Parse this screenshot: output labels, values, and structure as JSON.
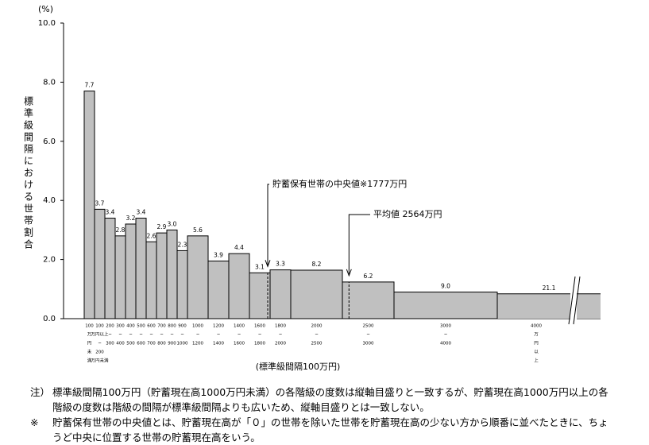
{
  "chart_data": {
    "type": "histogram",
    "y_unit": "(%)",
    "y_label": "標準級間隔における世帯割合",
    "x_label": "(標準級間隔100万円)",
    "bins": [
      0,
      100,
      200,
      300,
      400,
      500,
      600,
      700,
      800,
      900,
      1000,
      1200,
      1400,
      1600,
      1800,
      2000,
      2500,
      3000,
      4000,
      5000
    ],
    "values": [
      7.7,
      3.7,
      3.4,
      2.8,
      3.2,
      3.4,
      2.6,
      2.9,
      3.0,
      2.3,
      2.8,
      1.95,
      2.2,
      1.55,
      1.65,
      1.64,
      1.24,
      0.9,
      0.84
    ],
    "shares": [
      "7.7",
      "3.7",
      "3.4",
      "2.8",
      "3.2",
      "3.4",
      "2.6",
      "2.9",
      "3.0",
      "2.3",
      "5.6",
      "3.9",
      "4.4",
      "3.1",
      "3.3",
      "8.2",
      "6.2",
      "9.0",
      "21.1"
    ],
    "x_tick_labels": [
      [
        "100",
        "万",
        "円",
        "未",
        "満"
      ],
      [
        "100",
        "万円以上",
        "~",
        "200",
        "万円未満"
      ],
      [
        "200",
        "~",
        "300"
      ],
      [
        "300",
        "~",
        "400"
      ],
      [
        "400",
        "~",
        "500"
      ],
      [
        "500",
        "~",
        "600"
      ],
      [
        "600",
        "~",
        "700"
      ],
      [
        "700",
        "~",
        "800"
      ],
      [
        "800",
        "~",
        "900"
      ],
      [
        "900",
        "~",
        "1000"
      ],
      [
        "1000",
        "~",
        "1200"
      ],
      [
        "1200",
        "~",
        "1400"
      ],
      [
        "1400",
        "~",
        "1600"
      ],
      [
        "1600",
        "~",
        "1800"
      ],
      [
        "1800",
        "~",
        "2000"
      ],
      [
        "2000",
        "~",
        "2500"
      ],
      [
        "2500",
        "~",
        "3000"
      ],
      [
        "3000",
        "~",
        "4000"
      ],
      [
        "4000",
        "万",
        "円",
        "以",
        "上"
      ]
    ],
    "color": "#c0c0c0",
    "xlim": [
      -200,
      5000
    ],
    "ylim": [
      0,
      10
    ],
    "yticks": [
      {
        "value": 0,
        "label": "0.0"
      },
      {
        "value": 2,
        "label": "2.0"
      },
      {
        "value": 4,
        "label": "4.0"
      },
      {
        "value": 6,
        "label": "6.0"
      },
      {
        "value": 8,
        "label": "8.0"
      },
      {
        "value": 10,
        "label": "10.0"
      }
    ],
    "markers": [
      {
        "label": "貯蓄保有世帯の中央値※1777万円",
        "x": 1777
      },
      {
        "label": "平均値 2564万円",
        "x": 2564
      }
    ]
  },
  "notes": [
    {
      "mark": "注）",
      "text": "標準級間隔100万円（貯蓄現在高1000万円未満）の各階級の度数は縦軸目盛りと一致するが、貯蓄現在高1000万円以上の各階級の度数は階級の間隔が標準級間隔よりも広いため、縦軸目盛りとは一致しない。"
    },
    {
      "mark": "※",
      "text": "貯蓄保有世帯の中央値とは、貯蓄現在高が「０」の世帯を除いた世帯を貯蓄現在高の少ない方から順番に並べたときに、ちょうど中央に位置する世帯の貯蓄現在高をいう。"
    }
  ]
}
